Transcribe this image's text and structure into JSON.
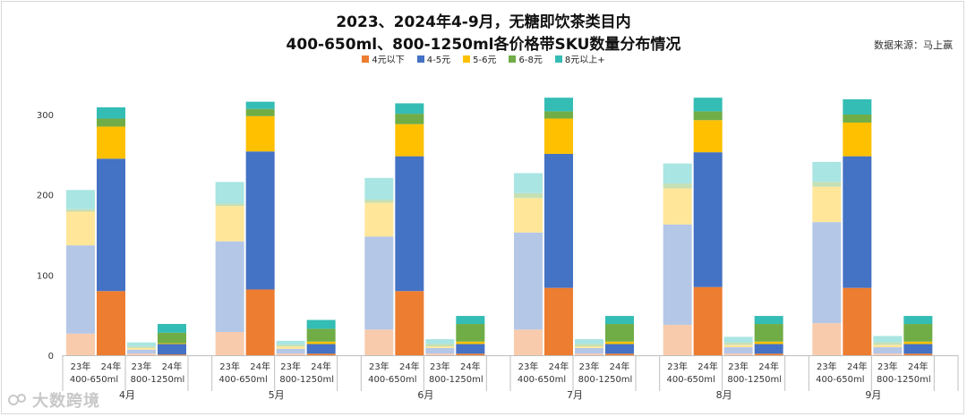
{
  "header": {
    "title_line1": "2023、2024年4-9月，无糖即饮茶类目内",
    "title_line2": "400-650ml、800-1250ml各价格带SKU数量分布情况",
    "source": "数据来源：马上赢"
  },
  "watermark": {
    "text": "大数跨境"
  },
  "chart_data": {
    "type": "bar",
    "stacked": true,
    "y_ticks": [
      "0",
      "100",
      "200",
      "300"
    ],
    "ylim": [
      0,
      330
    ],
    "grid": false,
    "legend_position": "top",
    "series_names": [
      "4元以下",
      "4-5元",
      "5-6元",
      "6-8元",
      "8元以上+"
    ],
    "series_colors": [
      "#ED7D31",
      "#4472C4",
      "#FFC000",
      "#70AD47",
      "#34BDB5"
    ],
    "series_colors_light": [
      "#F8CBAD",
      "#B4C7E7",
      "#FFE699",
      "#C5E0B4",
      "#A9E5E2"
    ],
    "months": [
      {
        "label": "4月",
        "bars": [
          {
            "year": "23年",
            "values": [
              27,
              110,
              42,
              3,
              24
            ]
          },
          {
            "year": "24年",
            "values": [
              80,
              165,
              40,
              10,
              14
            ]
          },
          {
            "year": "23年",
            "values": [
              2,
              5,
              2,
              2,
              5
            ]
          },
          {
            "year": "24年",
            "values": [
              1,
              13,
              1,
              13,
              11
            ]
          }
        ]
      },
      {
        "label": "5月",
        "bars": [
          {
            "year": "23年",
            "values": [
              29,
              113,
              44,
              3,
              27
            ]
          },
          {
            "year": "24年",
            "values": [
              82,
              172,
              44,
              9,
              9
            ]
          },
          {
            "year": "23年",
            "values": [
              2,
              6,
              3,
              2,
              5
            ]
          },
          {
            "year": "24年",
            "values": [
              2,
              12,
              3,
              16,
              11
            ]
          }
        ]
      },
      {
        "label": "6月",
        "bars": [
          {
            "year": "23年",
            "values": [
              32,
              116,
              42,
              4,
              27
            ]
          },
          {
            "year": "24年",
            "values": [
              80,
              168,
              40,
              13,
              13
            ]
          },
          {
            "year": "23年",
            "values": [
              2,
              7,
              2,
              3,
              6
            ]
          },
          {
            "year": "24年",
            "values": [
              2,
              12,
              3,
              22,
              10
            ]
          }
        ]
      },
      {
        "label": "7月",
        "bars": [
          {
            "year": "23年",
            "values": [
              32,
              121,
              43,
              6,
              25
            ]
          },
          {
            "year": "24年",
            "values": [
              84,
              167,
              44,
              9,
              17
            ]
          },
          {
            "year": "23年",
            "values": [
              2,
              7,
              2,
              3,
              6
            ]
          },
          {
            "year": "24年",
            "values": [
              2,
              12,
              3,
              22,
              10
            ]
          }
        ]
      },
      {
        "label": "8月",
        "bars": [
          {
            "year": "23年",
            "values": [
              38,
              125,
              45,
              6,
              25
            ]
          },
          {
            "year": "24年",
            "values": [
              85,
              168,
              40,
              11,
              17
            ]
          },
          {
            "year": "23年",
            "values": [
              2,
              8,
              3,
              3,
              7
            ]
          },
          {
            "year": "24年",
            "values": [
              2,
              12,
              3,
              22,
              10
            ]
          }
        ]
      },
      {
        "label": "9月",
        "bars": [
          {
            "year": "23年",
            "values": [
              40,
              126,
              44,
              6,
              25
            ]
          },
          {
            "year": "24年",
            "values": [
              84,
              164,
              42,
              10,
              19
            ]
          },
          {
            "year": "23年",
            "values": [
              2,
              8,
              3,
              3,
              8
            ]
          },
          {
            "year": "24年",
            "values": [
              2,
              12,
              3,
              22,
              10
            ]
          }
        ]
      }
    ],
    "group_labels": [
      "400-650ml",
      "800-1250ml"
    ]
  }
}
